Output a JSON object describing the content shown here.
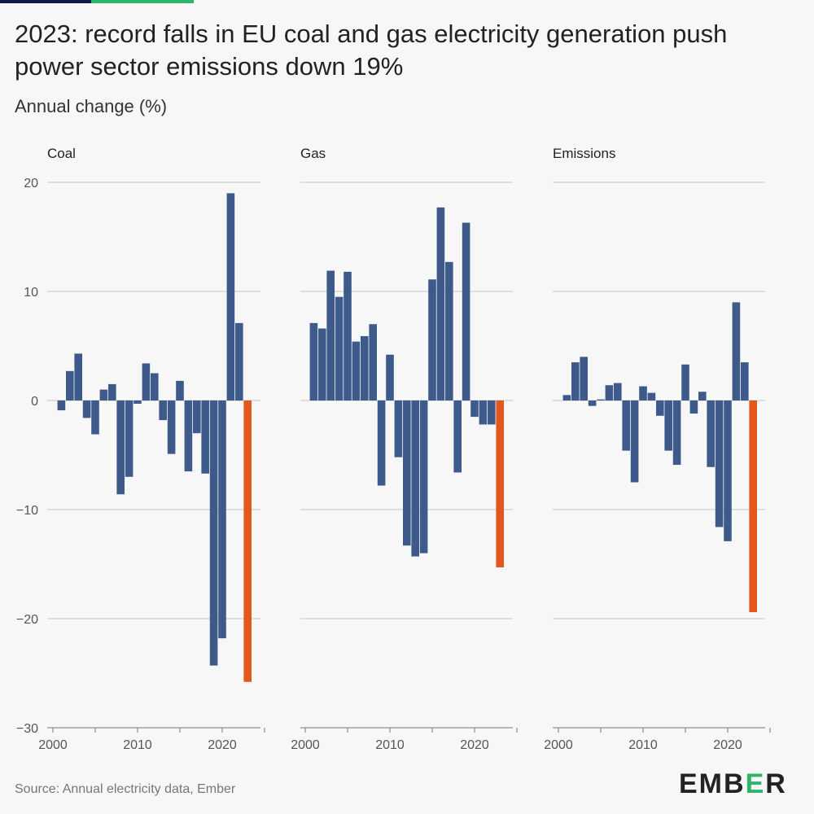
{
  "header": {
    "title": "2023: record falls in EU coal and gas electricity generation push power sector emissions down 19%",
    "subtitle": "Annual change (%)"
  },
  "footer": {
    "source": "Source: Annual electricity data, Ember",
    "logo_left": "EMB",
    "logo_accent": "E",
    "logo_right": "R"
  },
  "colors": {
    "historical": "#3d5a8a",
    "highlight": "#e2581c",
    "grid": "#c4c4c4",
    "axis_text": "#555555",
    "panel_title": "#222222",
    "brand_green": "#2fb36d"
  },
  "chart_data": {
    "type": "bar",
    "ylim": [
      -30,
      20
    ],
    "yticks": [
      20,
      10,
      0,
      -10,
      -20,
      -30
    ],
    "xticks": [
      2000,
      2010,
      2020
    ],
    "grid": true,
    "highlight_year": 2023,
    "years": [
      2001,
      2002,
      2003,
      2004,
      2005,
      2006,
      2007,
      2008,
      2009,
      2010,
      2011,
      2012,
      2013,
      2014,
      2015,
      2016,
      2017,
      2018,
      2019,
      2020,
      2021,
      2022,
      2023
    ],
    "series": [
      {
        "name": "Coal",
        "values": [
          -0.9,
          2.7,
          4.3,
          -1.6,
          -3.1,
          1.0,
          1.5,
          -8.6,
          -7.0,
          -0.3,
          3.4,
          2.5,
          -1.8,
          -4.9,
          1.8,
          -6.5,
          -3.0,
          -6.7,
          -24.3,
          -21.8,
          19.0,
          7.1,
          -25.8
        ]
      },
      {
        "name": "Gas",
        "values": [
          7.1,
          6.6,
          11.9,
          9.5,
          11.8,
          5.4,
          5.9,
          7.0,
          -7.8,
          4.2,
          -5.2,
          -13.3,
          -14.3,
          -14.0,
          11.1,
          17.7,
          12.7,
          -6.6,
          16.3,
          -1.5,
          -2.2,
          -2.2,
          -15.3
        ]
      },
      {
        "name": "Emissions",
        "values": [
          0.5,
          3.5,
          4.0,
          -0.5,
          0.1,
          1.4,
          1.6,
          -4.6,
          -7.5,
          1.3,
          0.7,
          -1.4,
          -4.6,
          -5.9,
          3.3,
          -1.2,
          0.8,
          -6.1,
          -11.6,
          -12.9,
          9.0,
          3.5,
          -19.4
        ]
      }
    ]
  }
}
